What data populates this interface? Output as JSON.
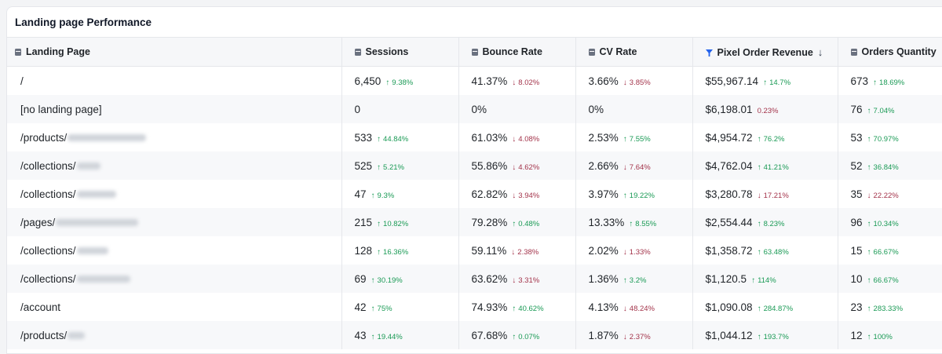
{
  "title": "Landing page Performance",
  "columns": [
    {
      "label": "Landing Page",
      "icon": "table-icon"
    },
    {
      "label": "Sessions",
      "icon": "table-icon"
    },
    {
      "label": "Bounce Rate",
      "icon": "table-icon"
    },
    {
      "label": "CV Rate",
      "icon": "table-icon"
    },
    {
      "label": "Pixel Order Revenue",
      "icon": "pixel-icon",
      "sort": "↓"
    },
    {
      "label": "Orders Quantity",
      "icon": "table-icon"
    }
  ],
  "rows": [
    {
      "page": "/",
      "sessions": "6,450",
      "sessions_delta": "9.38%",
      "sessions_dir": "up",
      "bounce": "41.37%",
      "bounce_delta": "8.02%",
      "bounce_dir": "down",
      "cv": "3.66%",
      "cv_delta": "3.85%",
      "cv_dir": "down",
      "revenue": "$55,967.14",
      "revenue_delta": "14.7%",
      "revenue_dir": "up",
      "orders": "673",
      "orders_delta": "18.69%",
      "orders_dir": "up"
    },
    {
      "page": "[no landing page]",
      "sessions": "0",
      "sessions_delta": "",
      "sessions_dir": "",
      "bounce": "0%",
      "bounce_delta": "",
      "bounce_dir": "",
      "cv": "0%",
      "cv_delta": "",
      "cv_dir": "",
      "revenue": "$6,198.01",
      "revenue_delta": "0.23%",
      "revenue_dir": "flat-down",
      "orders": "76",
      "orders_delta": "7.04%",
      "orders_dir": "up"
    },
    {
      "page": "/products/",
      "sessions": "533",
      "sessions_delta": "44.84%",
      "sessions_dir": "up",
      "bounce": "61.03%",
      "bounce_delta": "4.08%",
      "bounce_dir": "down",
      "cv": "2.53%",
      "cv_delta": "7.55%",
      "cv_dir": "up",
      "revenue": "$4,954.72",
      "revenue_delta": "76.2%",
      "revenue_dir": "up",
      "orders": "53",
      "orders_delta": "70.97%",
      "orders_dir": "up"
    },
    {
      "page": "/collections/",
      "sessions": "525",
      "sessions_delta": "5.21%",
      "sessions_dir": "up",
      "bounce": "55.86%",
      "bounce_delta": "4.62%",
      "bounce_dir": "down",
      "cv": "2.66%",
      "cv_delta": "7.64%",
      "cv_dir": "down",
      "revenue": "$4,762.04",
      "revenue_delta": "41.21%",
      "revenue_dir": "up",
      "orders": "52",
      "orders_delta": "36.84%",
      "orders_dir": "up"
    },
    {
      "page": "/collections/",
      "sessions": "47",
      "sessions_delta": "9.3%",
      "sessions_dir": "up",
      "bounce": "62.82%",
      "bounce_delta": "3.94%",
      "bounce_dir": "down",
      "cv": "3.97%",
      "cv_delta": "19.22%",
      "cv_dir": "up",
      "revenue": "$3,280.78",
      "revenue_delta": "17.21%",
      "revenue_dir": "down",
      "orders": "35",
      "orders_delta": "22.22%",
      "orders_dir": "down"
    },
    {
      "page": "/pages/",
      "sessions": "215",
      "sessions_delta": "10.82%",
      "sessions_dir": "up",
      "bounce": "79.28%",
      "bounce_delta": "0.48%",
      "bounce_dir": "up",
      "cv": "13.33%",
      "cv_delta": "8.55%",
      "cv_dir": "up",
      "revenue": "$2,554.44",
      "revenue_delta": "8.23%",
      "revenue_dir": "up",
      "orders": "96",
      "orders_delta": "10.34%",
      "orders_dir": "up"
    },
    {
      "page": "/collections/",
      "sessions": "128",
      "sessions_delta": "16.36%",
      "sessions_dir": "up",
      "bounce": "59.11%",
      "bounce_delta": "2.38%",
      "bounce_dir": "down",
      "cv": "2.02%",
      "cv_delta": "1.33%",
      "cv_dir": "down",
      "revenue": "$1,358.72",
      "revenue_delta": "63.48%",
      "revenue_dir": "up",
      "orders": "15",
      "orders_delta": "66.67%",
      "orders_dir": "up"
    },
    {
      "page": "/collections/",
      "sessions": "69",
      "sessions_delta": "30.19%",
      "sessions_dir": "up",
      "bounce": "63.62%",
      "bounce_delta": "3.31%",
      "bounce_dir": "down",
      "cv": "1.36%",
      "cv_delta": "3.2%",
      "cv_dir": "up",
      "revenue": "$1,120.5",
      "revenue_delta": "114%",
      "revenue_dir": "up",
      "orders": "10",
      "orders_delta": "66.67%",
      "orders_dir": "up"
    },
    {
      "page": "/account",
      "sessions": "42",
      "sessions_delta": "75%",
      "sessions_dir": "up",
      "bounce": "74.93%",
      "bounce_delta": "40.62%",
      "bounce_dir": "up",
      "cv": "4.13%",
      "cv_delta": "48.24%",
      "cv_dir": "down",
      "revenue": "$1,090.08",
      "revenue_delta": "284.87%",
      "revenue_dir": "up",
      "orders": "23",
      "orders_delta": "283.33%",
      "orders_dir": "up"
    },
    {
      "page": "/products/",
      "sessions": "43",
      "sessions_delta": "19.44%",
      "sessions_dir": "up",
      "bounce": "67.68%",
      "bounce_delta": "0.07%",
      "bounce_dir": "up",
      "cv": "1.87%",
      "cv_delta": "2.37%",
      "cv_dir": "down",
      "revenue": "$1,044.12",
      "revenue_delta": "193.7%",
      "revenue_dir": "up",
      "orders": "12",
      "orders_delta": "100%",
      "orders_dir": "up"
    }
  ],
  "colors": {
    "up": "#1a9a55",
    "down": "#a3334a",
    "header_bg": "#f6f7f9",
    "pixel_icon": "#2563eb"
  }
}
